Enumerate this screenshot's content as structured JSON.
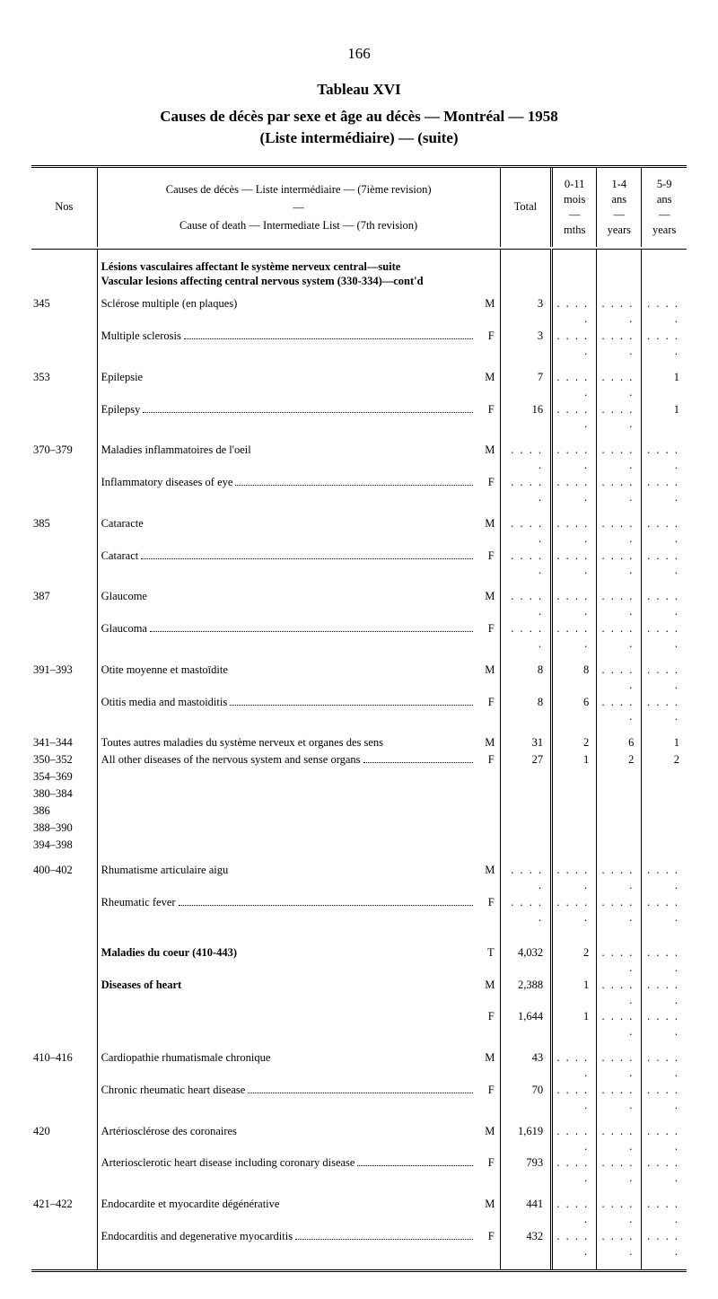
{
  "page_number": "166",
  "table_label": "Tableau XVI",
  "title_line1": "Causes de décès par sexe et âge au décès — Montréal — 1958",
  "title_line2": "(Liste intermédiaire) — (suite)",
  "headers": {
    "nos": "Nos",
    "cause_fr": "Causes de décès — Liste intermédiaire — (7ième revision)",
    "cause_en": "Cause of death — Intermediate List — (7th revision)",
    "total": "Total",
    "age1_top": "0-11",
    "age1_mid": "mois",
    "age1_bot": "mths",
    "age2_top": "1-4",
    "age2_mid": "ans",
    "age2_bot": "years",
    "age3_top": "5-9",
    "age3_mid": "ans",
    "age3_bot": "years",
    "dash": "—"
  },
  "section1_fr": "Lésions vasculaires affectant le système nerveux central—suite",
  "section1_en": "Vascular lesions affecting central nervous system (330-334)—cont'd",
  "rows": {
    "r345": {
      "nos": "345",
      "fr": "Sclérose multiple (en plaques)",
      "en": "Multiple sclerosis",
      "m_total": "3",
      "f_total": "3"
    },
    "r353": {
      "nos": "353",
      "fr": "Epilepsie",
      "en": "Epilepsy",
      "m_total": "7",
      "f_total": "16",
      "m_a3": "1",
      "f_a3": "1"
    },
    "r370": {
      "nos": "370–379",
      "fr": "Maladies inflammatoires de l'oeil",
      "en": "Inflammatory diseases of eye"
    },
    "r385": {
      "nos": "385",
      "fr": "Cataracte",
      "en": "Cataract"
    },
    "r387": {
      "nos": "387",
      "fr": "Glaucome",
      "en": "Glaucoma"
    },
    "r391": {
      "nos": "391–393",
      "fr": "Otite moyenne et mastoïdite",
      "en": "Otitis media and mastoiditis",
      "m_total": "8",
      "f_total": "8",
      "m_a1": "8",
      "f_a1": "6"
    },
    "r341": {
      "nos": "341–344",
      "fr": "Toutes autres maladies du système nerveux et organes des sens",
      "en": "All other diseases of the nervous system and sense organs",
      "m_total": "31",
      "f_total": "27",
      "m_a1": "2",
      "f_a1": "1",
      "m_a2": "6",
      "f_a2": "2",
      "m_a3": "1",
      "f_a3": "2",
      "extra_nos": [
        "350–352",
        "354–369",
        "380–384",
        "386",
        "388–390",
        "394–398"
      ]
    },
    "r400": {
      "nos": "400–402",
      "fr": "Rhumatisme articulaire aigu",
      "en": "Rheumatic fever"
    },
    "heart_hdr": {
      "fr": "Maladies du coeur (410-443)",
      "en": "Diseases of heart",
      "t_total": "4,032",
      "m_total": "2,388",
      "f_total": "1,644",
      "t_a1": "2",
      "m_a1": "1",
      "f_a1": "1"
    },
    "r410": {
      "nos": "410–416",
      "fr": "Cardiopathie rhumatismale chronique",
      "en": "Chronic rheumatic heart disease",
      "m_total": "43",
      "f_total": "70"
    },
    "r420": {
      "nos": "420",
      "fr": "Artériosclérose des coronaires",
      "en": "Arteriosclerotic heart disease including coronary disease",
      "m_total": "1,619",
      "f_total": "793"
    },
    "r421": {
      "nos": "421–422",
      "fr": "Endocardite et myocardite dégénérative",
      "en": "Endocarditis and degenerative myocarditis",
      "m_total": "441",
      "f_total": "432"
    }
  },
  "dots": ". . . . .",
  "sex": {
    "M": "M",
    "F": "F",
    "T": "T"
  }
}
